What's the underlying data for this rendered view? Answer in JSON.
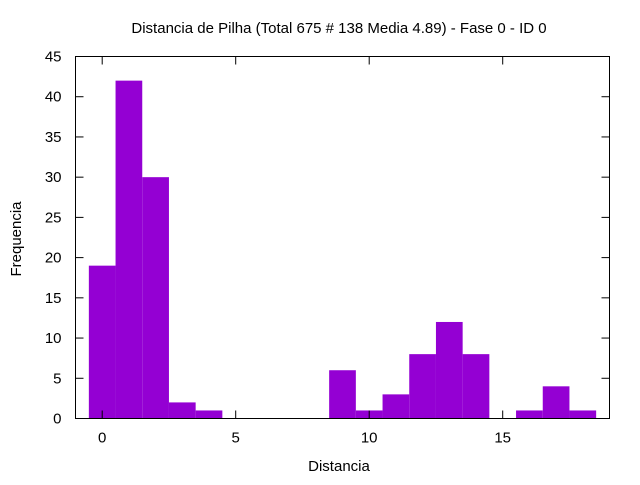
{
  "chart_data": {
    "type": "bar",
    "title": "Distancia de Pilha (Total 675 # 138 Media 4.89) - Fase  0 - ID 0",
    "xlabel": "Distancia",
    "ylabel": "Frequencia",
    "xlim": [
      -1,
      19
    ],
    "ylim": [
      0,
      45
    ],
    "bar_width": 1,
    "x_ticks": [
      0,
      5,
      10,
      15
    ],
    "y_ticks": [
      0,
      5,
      10,
      15,
      20,
      25,
      30,
      35,
      40,
      45
    ],
    "grid": false,
    "legend": "none",
    "bar_color": "#9400d3",
    "series": [
      {
        "x": [
          0,
          1,
          2,
          3,
          4,
          5,
          6,
          7,
          8,
          9,
          10,
          11,
          12,
          13,
          14,
          15,
          16,
          17,
          18
        ],
        "values": [
          19,
          42,
          30,
          2,
          1,
          0,
          0,
          0,
          0,
          6,
          1,
          3,
          8,
          12,
          8,
          0,
          1,
          4,
          1
        ]
      }
    ]
  }
}
